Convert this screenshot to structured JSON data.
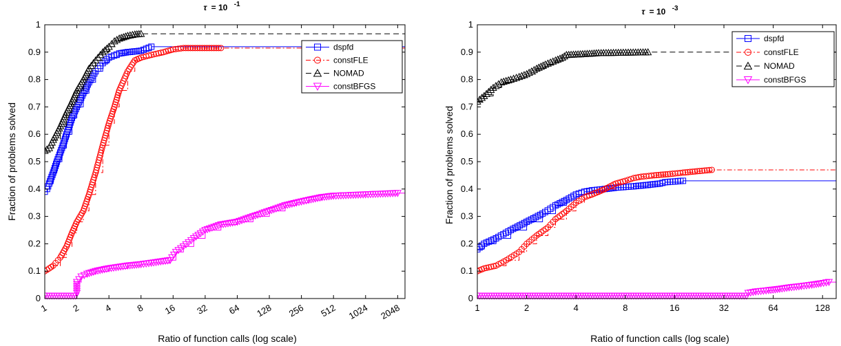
{
  "chart_data": [
    {
      "type": "line",
      "title_symbol": "τ",
      "title_text": "= 10",
      "title_exponent": "-1",
      "xlabel": "Ratio of function calls (log scale)",
      "ylabel": "Fraction of problems solved",
      "x_scale": "log2",
      "xlim": [
        1,
        2400
      ],
      "ylim": [
        0,
        1
      ],
      "x_ticks": [
        1,
        2,
        4,
        8,
        16,
        32,
        64,
        128,
        256,
        512,
        1024,
        2048
      ],
      "x_tick_labels": [
        "1",
        "2",
        "4",
        "8",
        "16",
        "32",
        "64",
        "128",
        "256",
        "512",
        "1024",
        "2048"
      ],
      "x_tick_rotation": -30,
      "y_ticks": [
        0,
        0.1,
        0.2,
        0.3,
        0.4,
        0.5,
        0.6,
        0.7,
        0.8,
        0.9,
        1
      ],
      "y_tick_labels": [
        "0",
        "0.1",
        "0.2",
        "0.3",
        "0.4",
        "0.5",
        "0.6",
        "0.7",
        "0.8",
        "0.9",
        "1"
      ],
      "legend_position": "top-right",
      "series": [
        {
          "name": "dspfd",
          "color": "#0000ff",
          "dash": "solid",
          "marker": "square",
          "points": [
            [
              1,
              0.39
            ],
            [
              1.05,
              0.4
            ],
            [
              1.1,
              0.42
            ],
            [
              1.2,
              0.46
            ],
            [
              1.3,
              0.5
            ],
            [
              1.45,
              0.55
            ],
            [
              1.6,
              0.6
            ],
            [
              1.8,
              0.66
            ],
            [
              2,
              0.7
            ],
            [
              2.3,
              0.75
            ],
            [
              2.6,
              0.79
            ],
            [
              3,
              0.83
            ],
            [
              3.5,
              0.86
            ],
            [
              4,
              0.88
            ],
            [
              5,
              0.895
            ],
            [
              6,
              0.9
            ],
            [
              8,
              0.905
            ],
            [
              10,
              0.92
            ],
            [
              2400,
              0.92
            ]
          ]
        },
        {
          "name": "constFLE",
          "color": "#ff0000",
          "dash": "dashdot",
          "marker": "circle",
          "points": [
            [
              1,
              0.1
            ],
            [
              1.1,
              0.11
            ],
            [
              1.2,
              0.12
            ],
            [
              1.4,
              0.15
            ],
            [
              1.6,
              0.19
            ],
            [
              1.8,
              0.24
            ],
            [
              2,
              0.28
            ],
            [
              2.3,
              0.32
            ],
            [
              2.6,
              0.38
            ],
            [
              3,
              0.46
            ],
            [
              3.5,
              0.56
            ],
            [
              4,
              0.64
            ],
            [
              4.5,
              0.7
            ],
            [
              5,
              0.76
            ],
            [
              6,
              0.83
            ],
            [
              7,
              0.87
            ],
            [
              8,
              0.88
            ],
            [
              10,
              0.89
            ],
            [
              13,
              0.9
            ],
            [
              16,
              0.91
            ],
            [
              20,
              0.915
            ],
            [
              45,
              0.915
            ],
            [
              2400,
              0.915
            ]
          ]
        },
        {
          "name": "NOMAD",
          "color": "#000000",
          "dash": "dashed",
          "marker": "triangle-up",
          "points": [
            [
              1,
              0.54
            ],
            [
              1.1,
              0.55
            ],
            [
              1.2,
              0.58
            ],
            [
              1.4,
              0.63
            ],
            [
              1.6,
              0.68
            ],
            [
              1.8,
              0.72
            ],
            [
              2,
              0.76
            ],
            [
              2.3,
              0.8
            ],
            [
              2.6,
              0.84
            ],
            [
              3,
              0.87
            ],
            [
              3.5,
              0.9
            ],
            [
              4,
              0.92
            ],
            [
              4.5,
              0.94
            ],
            [
              5,
              0.95
            ],
            [
              6,
              0.96
            ],
            [
              7,
              0.965
            ],
            [
              8,
              0.967
            ],
            [
              2400,
              0.967
            ]
          ]
        },
        {
          "name": "constBFGS",
          "color": "#ff00ff",
          "dash": "solid",
          "marker": "triangle-down",
          "points": [
            [
              1,
              0.01
            ],
            [
              1.95,
              0.01
            ],
            [
              2,
              0.02
            ],
            [
              2,
              0.06
            ],
            [
              2.2,
              0.08
            ],
            [
              2.5,
              0.09
            ],
            [
              3,
              0.1
            ],
            [
              4,
              0.11
            ],
            [
              6,
              0.12
            ],
            [
              8,
              0.125
            ],
            [
              10,
              0.13
            ],
            [
              15,
              0.14
            ],
            [
              17,
              0.17
            ],
            [
              20,
              0.19
            ],
            [
              25,
              0.22
            ],
            [
              32,
              0.25
            ],
            [
              45,
              0.27
            ],
            [
              64,
              0.28
            ],
            [
              90,
              0.3
            ],
            [
              128,
              0.32
            ],
            [
              180,
              0.34
            ],
            [
              230,
              0.35
            ],
            [
              300,
              0.36
            ],
            [
              400,
              0.37
            ],
            [
              512,
              0.375
            ],
            [
              1024,
              0.38
            ],
            [
              2048,
              0.385
            ],
            [
              2400,
              0.385
            ]
          ]
        }
      ]
    },
    {
      "type": "line",
      "title_symbol": "τ",
      "title_text": "= 10",
      "title_exponent": "-3",
      "xlabel": "Ratio of function calls (log scale)",
      "ylabel": "Fraction of problems solved",
      "x_scale": "log2",
      "xlim": [
        1,
        155
      ],
      "ylim": [
        0,
        1
      ],
      "x_ticks": [
        1,
        2,
        4,
        8,
        16,
        32,
        64,
        128
      ],
      "x_tick_labels": [
        "1",
        "2",
        "4",
        "8",
        "16",
        "32",
        "64",
        "128"
      ],
      "x_tick_rotation": 0,
      "y_ticks": [
        0,
        0.1,
        0.2,
        0.3,
        0.4,
        0.5,
        0.6,
        0.7,
        0.8,
        0.9,
        1
      ],
      "y_tick_labels": [
        "0",
        "0.1",
        "0.2",
        "0.3",
        "0.4",
        "0.5",
        "0.6",
        "0.7",
        "0.8",
        "0.9",
        "1"
      ],
      "legend_position": "top-right",
      "series": [
        {
          "name": "dspfd",
          "color": "#0000ff",
          "dash": "solid",
          "marker": "square",
          "points": [
            [
              1,
              0.18
            ],
            [
              1.1,
              0.2
            ],
            [
              1.3,
              0.22
            ],
            [
              1.6,
              0.25
            ],
            [
              2,
              0.28
            ],
            [
              2.5,
              0.31
            ],
            [
              3,
              0.34
            ],
            [
              3.5,
              0.36
            ],
            [
              4,
              0.38
            ],
            [
              4.5,
              0.39
            ],
            [
              5,
              0.395
            ],
            [
              6,
              0.4
            ],
            [
              7,
              0.405
            ],
            [
              9,
              0.41
            ],
            [
              11,
              0.415
            ],
            [
              13,
              0.42
            ],
            [
              14,
              0.425
            ],
            [
              18,
              0.43
            ],
            [
              155,
              0.43
            ]
          ]
        },
        {
          "name": "constFLE",
          "color": "#ff0000",
          "dash": "dashdot",
          "marker": "circle",
          "points": [
            [
              1,
              0.1
            ],
            [
              1.1,
              0.11
            ],
            [
              1.3,
              0.12
            ],
            [
              1.5,
              0.14
            ],
            [
              1.8,
              0.17
            ],
            [
              2,
              0.2
            ],
            [
              2.3,
              0.23
            ],
            [
              2.7,
              0.26
            ],
            [
              3,
              0.29
            ],
            [
              3.5,
              0.32
            ],
            [
              4,
              0.35
            ],
            [
              4.5,
              0.37
            ],
            [
              5,
              0.38
            ],
            [
              5.5,
              0.39
            ],
            [
              6,
              0.4
            ],
            [
              7,
              0.42
            ],
            [
              8,
              0.43
            ],
            [
              9,
              0.44
            ],
            [
              10,
              0.445
            ],
            [
              12,
              0.45
            ],
            [
              15,
              0.455
            ],
            [
              18,
              0.46
            ],
            [
              22,
              0.465
            ],
            [
              27,
              0.47
            ],
            [
              155,
              0.47
            ]
          ]
        },
        {
          "name": "NOMAD",
          "color": "#000000",
          "dash": "dashed",
          "marker": "triangle-up",
          "points": [
            [
              1,
              0.72
            ],
            [
              1.1,
              0.74
            ],
            [
              1.25,
              0.77
            ],
            [
              1.4,
              0.79
            ],
            [
              1.6,
              0.8
            ],
            [
              1.8,
              0.81
            ],
            [
              2,
              0.82
            ],
            [
              2.3,
              0.84
            ],
            [
              2.6,
              0.855
            ],
            [
              3,
              0.87
            ],
            [
              3.3,
              0.88
            ],
            [
              3.5,
              0.89
            ],
            [
              5,
              0.895
            ],
            [
              5.5,
              0.897
            ],
            [
              11,
              0.9
            ],
            [
              155,
              0.9
            ]
          ]
        },
        {
          "name": "constBFGS",
          "color": "#ff00ff",
          "dash": "solid",
          "marker": "triangle-down",
          "points": [
            [
              1,
              0.01
            ],
            [
              44,
              0.01
            ],
            [
              45,
              0.02
            ],
            [
              50,
              0.025
            ],
            [
              60,
              0.03
            ],
            [
              70,
              0.035
            ],
            [
              80,
              0.04
            ],
            [
              95,
              0.045
            ],
            [
              110,
              0.05
            ],
            [
              125,
              0.055
            ],
            [
              140,
              0.06
            ],
            [
              155,
              0.06
            ]
          ]
        }
      ]
    }
  ]
}
